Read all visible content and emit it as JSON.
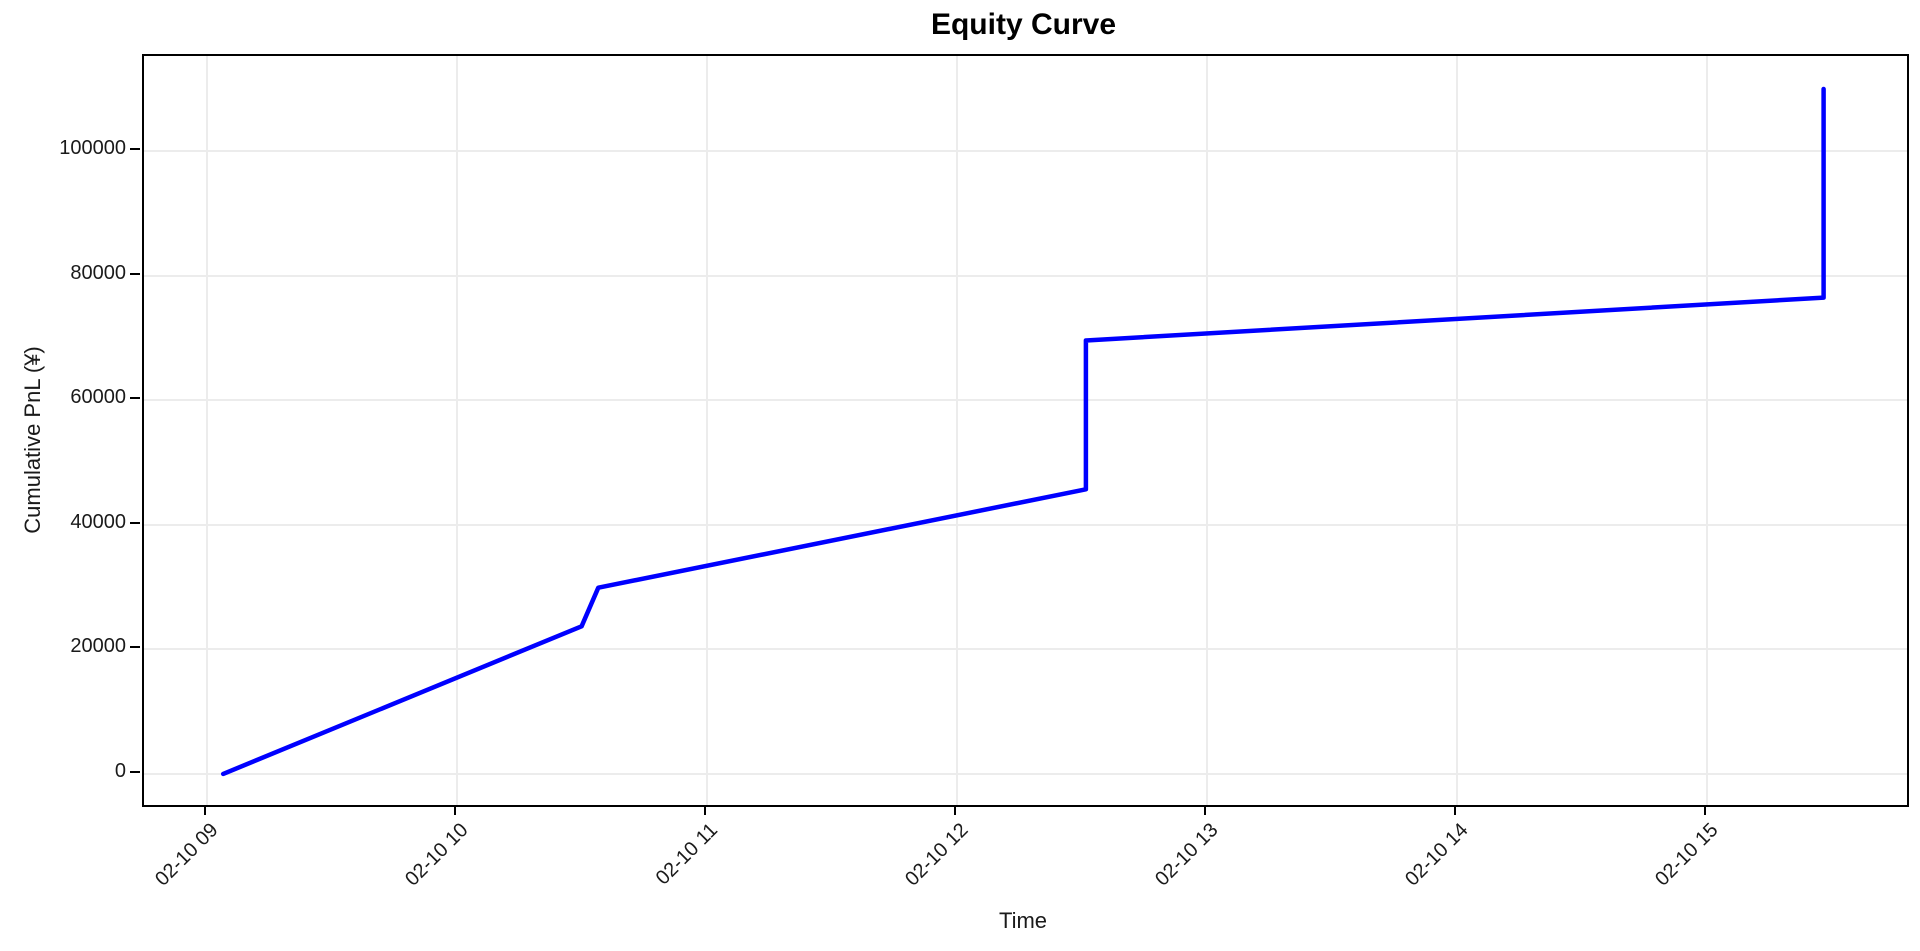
{
  "title": "Equity Curve",
  "axes": {
    "x_label": "Time",
    "y_label": "Cumulative PnL (¥)",
    "x_ticks": [
      {
        "label": "02-10 09",
        "time": "09:00"
      },
      {
        "label": "02-10 10",
        "time": "10:00"
      },
      {
        "label": "02-10 11",
        "time": "11:00"
      },
      {
        "label": "02-10 12",
        "time": "12:00"
      },
      {
        "label": "02-10 13",
        "time": "13:00"
      },
      {
        "label": "02-10 14",
        "time": "14:00"
      },
      {
        "label": "02-10 15",
        "time": "15:00"
      }
    ],
    "y_ticks": [
      {
        "label": "0",
        "value": 0
      },
      {
        "label": "20000",
        "value": 20000
      },
      {
        "label": "40000",
        "value": 40000
      },
      {
        "label": "60000",
        "value": 60000
      },
      {
        "label": "80000",
        "value": 80000
      },
      {
        "label": "100000",
        "value": 100000
      }
    ],
    "xlim_time": [
      "08:45",
      "15:48"
    ],
    "ylim": [
      -5000,
      115300
    ],
    "grid": true
  },
  "chart_data": {
    "type": "line",
    "title": "Equity Curve",
    "xlabel": "Time",
    "ylabel": "Cumulative PnL (¥)",
    "x_tick_labels": [
      "02-10 09",
      "02-10 10",
      "02-10 11",
      "02-10 12",
      "02-10 13",
      "02-10 14",
      "02-10 15"
    ],
    "ylim": [
      -5000,
      115300
    ],
    "grid": true,
    "legend": false,
    "series": [
      {
        "name": "Cumulative PnL",
        "color": "#0000ff",
        "points": [
          {
            "time": "02-10 09:04",
            "value": 0
          },
          {
            "time": "02-10 10:30",
            "value": 23700
          },
          {
            "time": "02-10 10:34",
            "value": 29900
          },
          {
            "time": "02-10 12:31",
            "value": 45700
          },
          {
            "time": "02-10 12:31",
            "value": 69600
          },
          {
            "time": "02-10 15:28",
            "value": 76500
          },
          {
            "time": "02-10 15:28",
            "value": 110000
          }
        ]
      }
    ]
  },
  "colors": {
    "line": "#0000ff",
    "grid": "#ececec",
    "spine": "#000000",
    "text": "#1a1a1a"
  }
}
